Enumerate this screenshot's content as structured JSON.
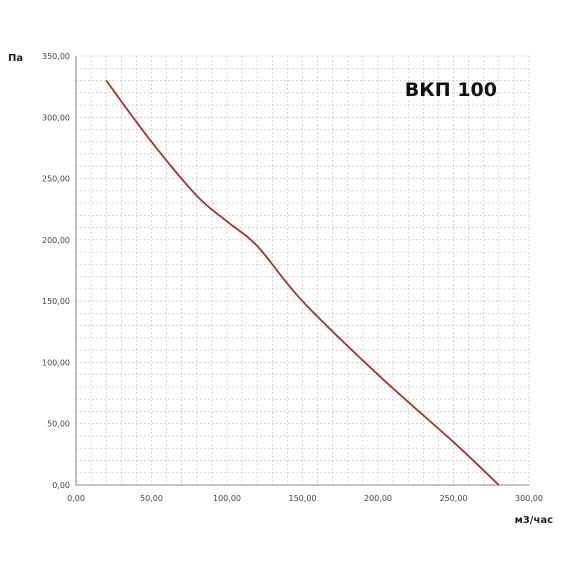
{
  "chart_data": {
    "type": "line",
    "title": "ВКП 100",
    "xlabel": "м3/час",
    "ylabel": "Па",
    "xlim": [
      0,
      300
    ],
    "ylim": [
      0,
      350
    ],
    "x_ticks": [
      "0,00",
      "50,00",
      "100,00",
      "150,00",
      "200,00",
      "250,00",
      "300,00"
    ],
    "y_ticks": [
      "0,00",
      "50,00",
      "100,00",
      "150,00",
      "200,00",
      "250,00",
      "300,00",
      "350,00"
    ],
    "grid": true,
    "series": [
      {
        "color": "#a8322d",
        "x": [
          20,
          50,
          80,
          100,
          120,
          150,
          200,
          250,
          280
        ],
        "y": [
          330,
          280,
          236,
          215,
          195,
          150,
          90,
          35,
          0
        ]
      }
    ]
  }
}
